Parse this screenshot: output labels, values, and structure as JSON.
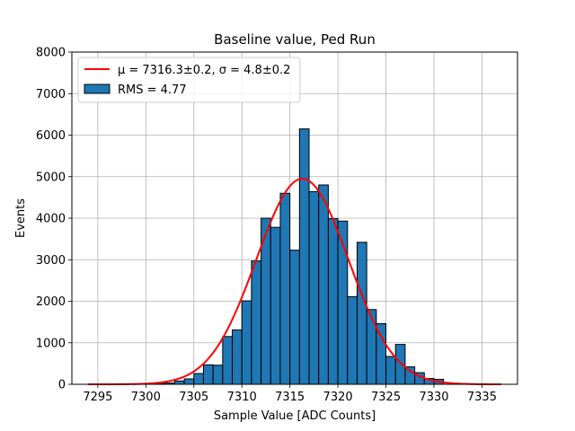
{
  "chart_data": {
    "type": "bar",
    "title": "Baseline value, Ped Run",
    "xlabel": "Sample Value [ADC Counts]",
    "ylabel": "Events",
    "xlim": [
      7292.3,
      7338.7
    ],
    "ylim": [
      0,
      8000
    ],
    "xticks": [
      7295,
      7300,
      7305,
      7310,
      7315,
      7320,
      7325,
      7330,
      7335
    ],
    "yticks": [
      0,
      1000,
      2000,
      3000,
      4000,
      5000,
      6000,
      7000,
      8000
    ],
    "grid": true,
    "legend_position": "top-left",
    "bin_width": 1,
    "bin_starts": [
      7301,
      7302,
      7303,
      7304,
      7305,
      7306,
      7307,
      7308,
      7309,
      7310,
      7311,
      7312,
      7313,
      7314,
      7315,
      7316,
      7317,
      7318,
      7319,
      7320,
      7321,
      7322,
      7323,
      7324,
      7325,
      7326,
      7327,
      7328,
      7329,
      7330
    ],
    "values": [
      20,
      30,
      80,
      130,
      260,
      470,
      460,
      1150,
      1310,
      2010,
      2970,
      4000,
      3780,
      4600,
      3230,
      6150,
      4640,
      4800,
      3990,
      3930,
      2110,
      3420,
      1800,
      1460,
      670,
      960,
      420,
      280,
      140,
      120
    ],
    "series": [
      {
        "name": "RMS = 4.77",
        "kind": "histogram",
        "color": "#1f77b4",
        "edgecolor": "#000000"
      },
      {
        "name": "μ = 7316.3±0.2, σ = 4.8±0.2",
        "kind": "gaussian-fit",
        "color": "#ff0000",
        "mu": 7316.3,
        "sigma": 4.8,
        "amplitude": 4950,
        "x_range": [
          7294,
          7337
        ]
      }
    ]
  }
}
